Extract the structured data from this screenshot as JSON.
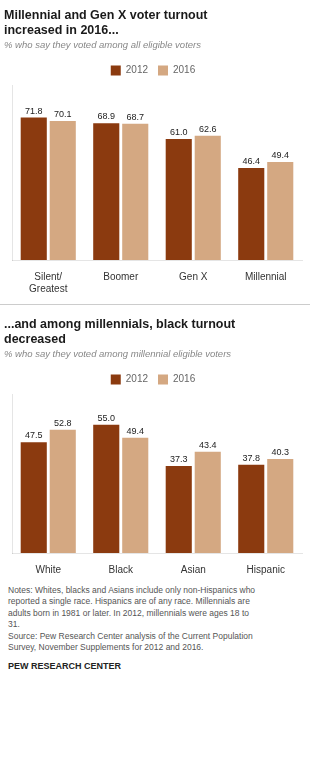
{
  "chart_data": [
    {
      "type": "bar",
      "title": "Millennial and Gen X voter turnout\nincreased in 2016...",
      "subtitle": "% who say they voted among all eligible voters",
      "categories": [
        "Silent/\nGreatest",
        "Boomer",
        "Gen X",
        "Millennial"
      ],
      "series": [
        {
          "name": "2012",
          "color": "#8B3A0F",
          "values": [
            71.8,
            68.9,
            61.0,
            46.4
          ],
          "value_labels": [
            "71.8",
            "68.9",
            "61.0",
            "46.4"
          ]
        },
        {
          "name": "2016",
          "color": "#D4A882",
          "values": [
            70.1,
            68.7,
            62.6,
            49.4
          ],
          "value_labels": [
            "70.1",
            "68.7",
            "62.6",
            "49.4"
          ]
        }
      ],
      "ylim": [
        0,
        88
      ],
      "legend": "top",
      "grid": false,
      "data_labels": true,
      "tick_labels": "x"
    },
    {
      "type": "bar",
      "title": "...and among millennials, black turnout\ndecreased",
      "subtitle": "% who say they voted among millennial eligible voters",
      "categories": [
        "White",
        "Black",
        "Asian",
        "Hispanic"
      ],
      "series": [
        {
          "name": "2012",
          "color": "#8B3A0F",
          "values": [
            47.5,
            55.0,
            37.3,
            37.8
          ],
          "value_labels": [
            "47.5",
            "55.0",
            "37.3",
            "37.8"
          ]
        },
        {
          "name": "2016",
          "color": "#D4A882",
          "values": [
            52.8,
            49.4,
            43.4,
            40.3
          ],
          "value_labels": [
            "52.8",
            "49.4",
            "43.4",
            "40.3"
          ]
        }
      ],
      "ylim": [
        0,
        68
      ],
      "legend": "top",
      "grid": false,
      "data_labels": true,
      "tick_labels": "x",
      "annotations": [
        "Notes: Whites, blacks and Asians include only non-Hispanics who",
        "reported a single race. Hispanics are of any race. Millennials are",
        "adults born in 1981 or later. In 2012, millennials were ages 18 to",
        "31.",
        "Source: Pew Research Center analysis of the Current Population",
        "Survey, November Supplements for 2012 and 2016.",
        "PEW RESEARCH CENTER"
      ]
    }
  ]
}
